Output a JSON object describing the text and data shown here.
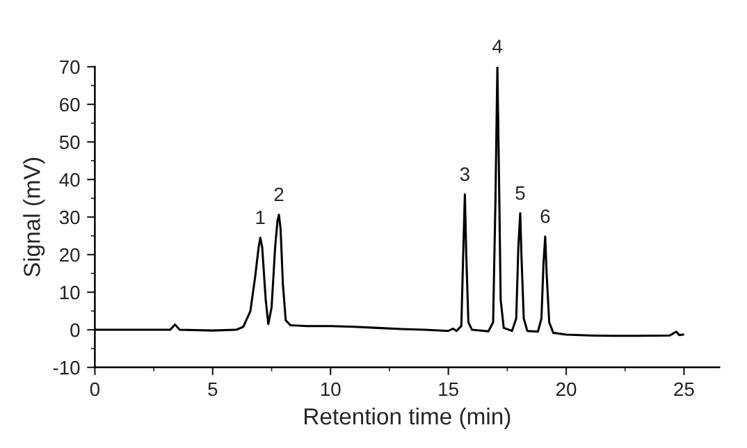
{
  "chart_data": {
    "type": "line",
    "xlabel": "Retention time (min)",
    "ylabel": "Signal (mV)",
    "xlim": [
      0,
      26.5
    ],
    "xticks": [
      0,
      5,
      10,
      15,
      20,
      25
    ],
    "ylim": [
      -10,
      70
    ],
    "yticks": [
      -10,
      0,
      10,
      20,
      30,
      40,
      50,
      60,
      70
    ],
    "grid": false,
    "marker": "none",
    "line_style": "solid",
    "series": [
      {
        "color": "#000000",
        "x": [
          0,
          1,
          3.2,
          3.4,
          3.6,
          5,
          6,
          6.3,
          6.6,
          6.8,
          6.95,
          7.02,
          7.1,
          7.25,
          7.36,
          7.5,
          7.65,
          7.75,
          7.81,
          7.88,
          7.98,
          8.1,
          8.3,
          9,
          10,
          11,
          12,
          13,
          14,
          15,
          15.2,
          15.35,
          15.55,
          15.63,
          15.7,
          15.76,
          15.85,
          16,
          16.7,
          16.9,
          17.0,
          17.08,
          17.14,
          17.22,
          17.35,
          17.7,
          17.88,
          17.97,
          18.05,
          18.1,
          18.2,
          18.35,
          18.8,
          18.95,
          19.04,
          19.11,
          19.17,
          19.28,
          19.45,
          20,
          21,
          22,
          23,
          24.4,
          24.67,
          24.8,
          24.97
        ],
        "values": [
          0,
          0,
          0,
          1.4,
          0,
          -0.2,
          0,
          0.8,
          5,
          14,
          22,
          24.5,
          22,
          8,
          1.5,
          6,
          22,
          29,
          30.6,
          27,
          12,
          2.5,
          1.2,
          1.0,
          1.0,
          0.8,
          0.5,
          0.2,
          0,
          -0.3,
          0.3,
          -0.3,
          1,
          20,
          36,
          20,
          2,
          0,
          -0.4,
          2,
          35,
          70,
          45,
          8,
          0.5,
          -0.3,
          3,
          22,
          31,
          20,
          3,
          -0.3,
          -0.5,
          3,
          18,
          24.8,
          15,
          2,
          -0.8,
          -1.3,
          -1.5,
          -1.6,
          -1.6,
          -1.5,
          -0.5,
          -1.4,
          -1.3
        ]
      }
    ],
    "annotations": [
      {
        "text": "1",
        "x": 7.02,
        "y": 24.5
      },
      {
        "text": "2",
        "x": 7.81,
        "y": 30.6
      },
      {
        "text": "3",
        "x": 15.7,
        "y": 36
      },
      {
        "text": "4",
        "x": 17.08,
        "y": 70
      },
      {
        "text": "5",
        "x": 18.05,
        "y": 31
      },
      {
        "text": "6",
        "x": 19.11,
        "y": 24.8
      }
    ]
  }
}
